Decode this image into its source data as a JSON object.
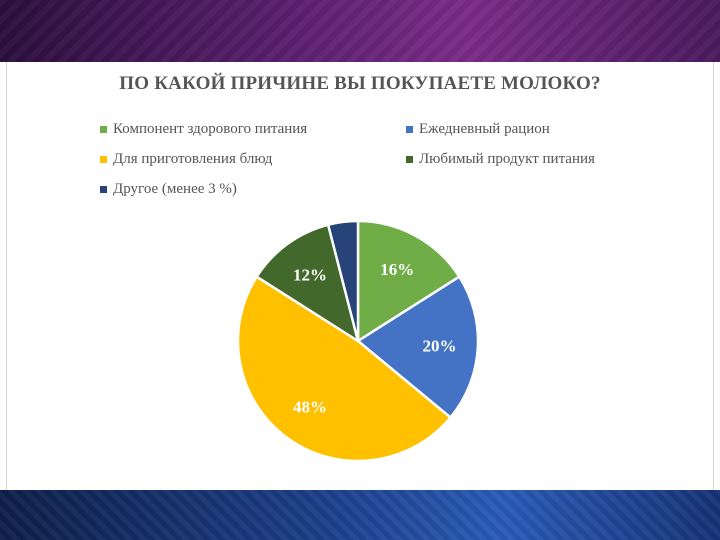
{
  "chart_data": {
    "type": "pie",
    "title": "ПО КАКОЙ ПРИЧИНЕ ВЫ ПОКУПАЕТЕ МОЛОКО?",
    "legend_placement": "top",
    "slices": [
      {
        "name": "Компонент здорового питания",
        "value": 16,
        "label": "16%",
        "color": "#70ad47",
        "label_color": "#ffffff"
      },
      {
        "name": "Ежедневный рацион",
        "value": 20,
        "label": "20%",
        "color": "#4472c4",
        "label_color": "#ffffff"
      },
      {
        "name": "Для приготовления блюд",
        "value": 48,
        "label": "48%",
        "color": "#ffc000",
        "label_color": "#ffffff"
      },
      {
        "name": "Любимый продукт питания",
        "value": 12,
        "label": "12%",
        "color": "#43682b",
        "label_color": "#ffffff"
      },
      {
        "name": "Другое (менее 3 %)",
        "value": 4,
        "label": "",
        "color": "#264478",
        "label_color": "#ffffff"
      }
    ]
  },
  "colors": {
    "text": "#555555",
    "slice_border": "#ffffff"
  }
}
